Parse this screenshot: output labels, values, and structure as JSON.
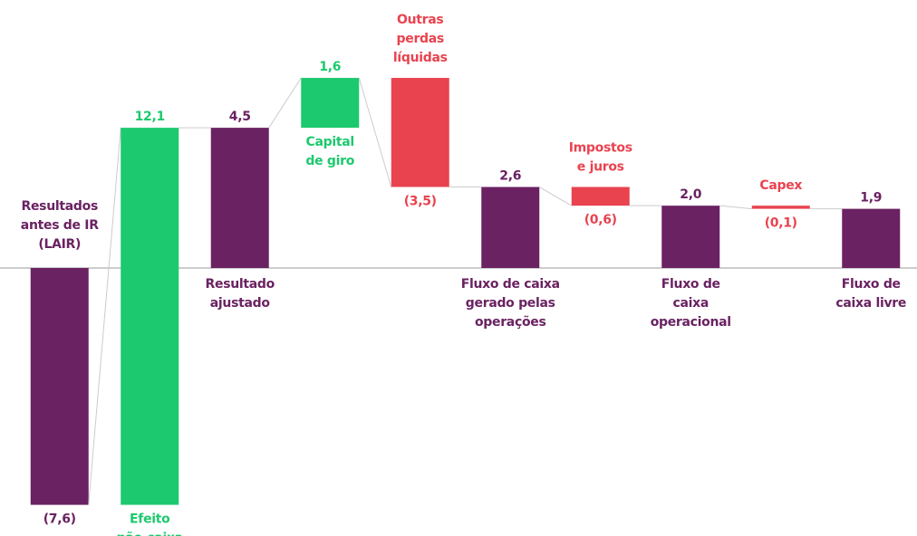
{
  "chart_data": {
    "type": "waterfall",
    "categories": [
      [
        "Resultados",
        "antes de IR",
        "(LAIR)"
      ],
      [
        "Efeito",
        "não-caixa"
      ],
      [
        "Resultado",
        "ajustado"
      ],
      [
        "Capital",
        "de giro"
      ],
      [
        "Outras",
        "perdas",
        "líquidas"
      ],
      [
        "Fluxo de caixa",
        "gerado pelas",
        "operações"
      ],
      [
        "Impostos",
        "e juros"
      ],
      [
        "Fluxo de",
        "caixa",
        "operacional"
      ],
      [
        "Capex"
      ],
      [
        "Fluxo de",
        "caixa livre"
      ]
    ],
    "values": [
      -7.6,
      12.1,
      4.5,
      1.6,
      -3.5,
      2.6,
      -0.6,
      2.0,
      -0.1,
      1.9
    ],
    "value_labels": [
      "(7,6)",
      "12,1",
      "4,5",
      "1,6",
      "(3,5)",
      "2,6",
      "(0,6)",
      "2,0",
      "(0,1)",
      "1,9"
    ],
    "measure": [
      "absolute",
      "relative",
      "absolute",
      "relative",
      "relative",
      "absolute",
      "relative",
      "absolute",
      "relative",
      "absolute"
    ],
    "colors": [
      "#6a2262",
      "#1dc96e",
      "#6a2262",
      "#1dc96e",
      "#e8434f",
      "#6a2262",
      "#e8434f",
      "#6a2262",
      "#e8434f",
      "#6a2262"
    ],
    "ylim": [
      -8.6,
      8.6
    ]
  }
}
